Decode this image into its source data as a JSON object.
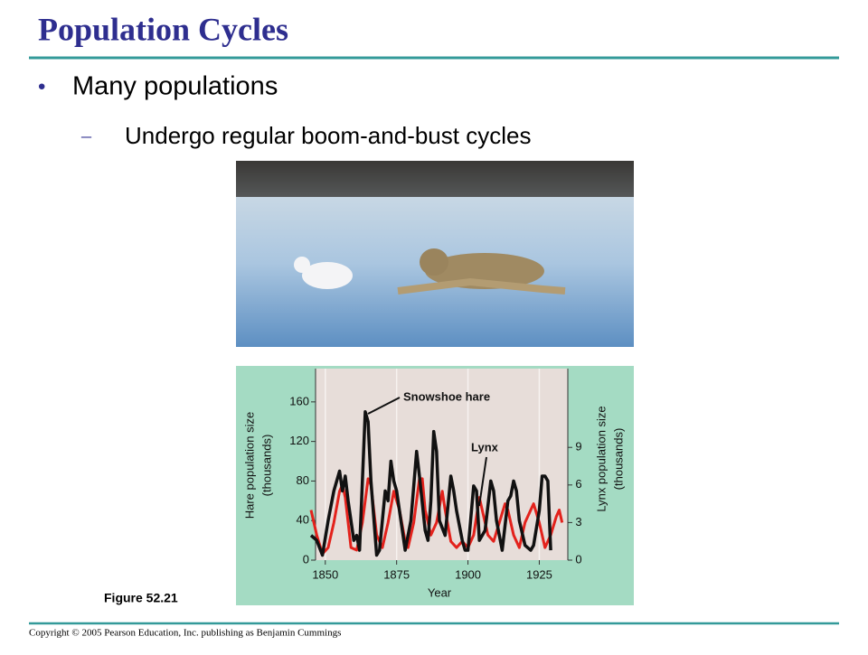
{
  "header": {
    "title": "Population Cycles"
  },
  "bullets": [
    {
      "text": "Many populations",
      "sub": [
        {
          "text": "Undergo regular boom-and-bust cycles"
        }
      ]
    }
  ],
  "figure_label": "Figure 52.21",
  "footer": "Copyright © 2005 Pearson Education, Inc. publishing as Benjamin Cummings",
  "chart_data": {
    "type": "line",
    "xlabel": "Year",
    "ylabel": [
      "Hare population size",
      "(thousands)"
    ],
    "y2label": [
      "Lynx population size",
      "(thousands)"
    ],
    "xlim": [
      1845,
      1935
    ],
    "xticks": [
      1850,
      1875,
      1900,
      1925
    ],
    "ylim": [
      0,
      190
    ],
    "yticks": [
      0,
      40,
      80,
      120,
      160
    ],
    "y2lim": [
      0,
      15
    ],
    "y2ticks": [
      0,
      3,
      6,
      9
    ],
    "grid": true,
    "annotations": [
      "Snowshoe hare",
      "Lynx"
    ],
    "series": [
      {
        "name": "Snowshoe hare",
        "color": "#111111",
        "x": [
          1845,
          1847,
          1849,
          1851,
          1853,
          1855,
          1856,
          1857,
          1858,
          1860,
          1861,
          1862,
          1864,
          1865,
          1866,
          1868,
          1869,
          1871,
          1872,
          1873,
          1874,
          1875,
          1876,
          1878,
          1880,
          1882,
          1883,
          1885,
          1886,
          1887,
          1888,
          1889,
          1890,
          1892,
          1894,
          1895,
          1896,
          1898,
          1899,
          1900,
          1902,
          1903,
          1904,
          1906,
          1908,
          1909,
          1910,
          1912,
          1914,
          1915,
          1916,
          1917,
          1918,
          1920,
          1922,
          1923,
          1925,
          1926,
          1927,
          1928,
          1929
        ],
        "values": [
          25,
          20,
          5,
          40,
          70,
          90,
          70,
          85,
          60,
          20,
          25,
          10,
          150,
          140,
          80,
          5,
          10,
          70,
          60,
          100,
          80,
          70,
          50,
          10,
          40,
          110,
          85,
          30,
          20,
          60,
          130,
          110,
          40,
          25,
          85,
          70,
          50,
          20,
          10,
          10,
          75,
          70,
          20,
          30,
          80,
          70,
          40,
          10,
          60,
          65,
          80,
          70,
          40,
          15,
          10,
          15,
          50,
          85,
          85,
          80,
          10
        ]
      },
      {
        "name": "Lynx",
        "color": "#e3221c",
        "axis": "y2",
        "x": [
          1845,
          1847,
          1849,
          1851,
          1853,
          1855,
          1856,
          1857,
          1859,
          1861,
          1863,
          1865,
          1866,
          1868,
          1870,
          1872,
          1874,
          1876,
          1878,
          1879,
          1881,
          1883,
          1884,
          1885,
          1887,
          1889,
          1891,
          1892,
          1894,
          1896,
          1898,
          1900,
          1902,
          1904,
          1905,
          1907,
          1909,
          1911,
          1913,
          1914,
          1916,
          1918,
          1920,
          1922,
          1923,
          1925,
          1927,
          1929,
          1931,
          1932,
          1933
        ],
        "values": [
          4,
          2,
          0.5,
          1,
          3,
          5.5,
          6,
          5,
          1,
          0.8,
          3,
          6.5,
          6,
          2,
          1,
          3,
          5.5,
          4,
          1.5,
          1,
          3,
          6.5,
          6.5,
          4,
          2,
          3,
          5.5,
          4,
          1.5,
          1,
          1.5,
          1,
          2,
          5,
          4,
          2,
          1.5,
          3,
          4.5,
          4,
          2,
          1,
          3,
          4,
          4.5,
          3,
          1,
          2,
          3.5,
          4,
          3
        ]
      }
    ]
  }
}
